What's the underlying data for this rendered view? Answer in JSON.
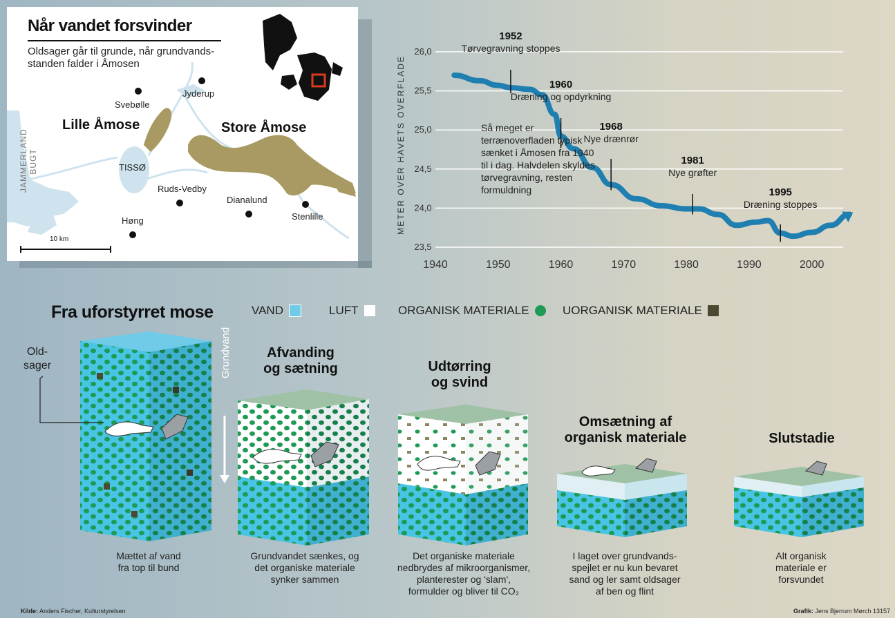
{
  "map": {
    "title": "Når vandet forsvinder",
    "subtitle": "Oldsager går til grunde, når grundvands-standen falder i Åmosen",
    "places": [
      "Jyderup",
      "Svebølle",
      "Ruds-Vedby",
      "Dianalund",
      "Stenlille",
      "Høng"
    ],
    "lake": "TISSØ",
    "region_lille": "Lille Åmose",
    "region_store": "Store Åmose",
    "bay_line1": "JAMMERLAND",
    "bay_line2": "BUGT",
    "scale": "10 km"
  },
  "chart_data": {
    "type": "line",
    "ylabel": "METER OVER HAVETS OVERFLADE",
    "xlabel": "",
    "ylim": [
      23.5,
      26.0
    ],
    "xlim": [
      1940,
      2005
    ],
    "yticks": [
      "26,0",
      "25,5",
      "25,0",
      "24,5",
      "24,0",
      "23,5"
    ],
    "xticks": [
      "1940",
      "1950",
      "1960",
      "1970",
      "1980",
      "1990",
      "2000"
    ],
    "series": [
      {
        "x": [
          1943,
          1947,
          1950,
          1952,
          1955,
          1957,
          1959,
          1960,
          1962,
          1965,
          1968,
          1972,
          1976,
          1980,
          1982,
          1985,
          1988,
          1991,
          1993,
          1995,
          1997,
          2000,
          2003,
          2006
        ],
        "y": [
          25.7,
          25.63,
          25.57,
          25.54,
          25.52,
          25.45,
          25.2,
          24.92,
          24.76,
          24.52,
          24.3,
          24.12,
          24.03,
          23.99,
          23.99,
          23.92,
          23.78,
          23.82,
          23.84,
          23.68,
          23.64,
          23.69,
          23.78,
          23.92
        ]
      }
    ],
    "annotations": [
      {
        "year": "1952",
        "text": "Tørvegravning stoppes",
        "x": 1952,
        "y": 25.54
      },
      {
        "year": "1960",
        "text": "Dræning og opdyrkning",
        "x": 1960,
        "y": 24.84
      },
      {
        "year": "1968",
        "text": "Nye drænrør",
        "x": 1968,
        "y": 24.3
      },
      {
        "year": "1981",
        "text": "Nye grøfter",
        "x": 1981,
        "y": 23.99
      },
      {
        "year": "1995",
        "text": "Dræning stoppes",
        "x": 1995,
        "y": 23.64
      }
    ],
    "note": "Så meget er terrænoverfladen typisk sænket i Åmosen fra 1940 til i dag. Halvdelen skyldes tørvegravning, resten formuldning"
  },
  "section": {
    "title": "Fra uforstyrret mose",
    "legend": [
      {
        "label": "VAND",
        "color": "#6fcbe8"
      },
      {
        "label": "LUFT",
        "color": "#ffffff"
      },
      {
        "label": "ORGANISK MATERIALE",
        "color": "#1e9a55"
      },
      {
        "label": "UORGANISK MATERIALE",
        "color": "#4b4a30"
      }
    ],
    "oldsager": "Old-\nsager",
    "grundvand": "Grundvand"
  },
  "stages": [
    {
      "title": "",
      "caption": "Mættet af vand\nfra top til bund"
    },
    {
      "title": "Afvanding\nog sætning",
      "caption": "Grundvandet sænkes, og\ndet organiske materiale\nsynker sammen"
    },
    {
      "title": "Udtørring\nog svind",
      "caption": "Det organiske materiale\nnedbrydes af mikroorganismer,\nplanterester og 'slam',\nformulder og bliver til CO₂"
    },
    {
      "title": "Omsætning af\norganisk materiale",
      "caption": "I laget over grundvands-\nspejlet er nu kun bevaret\nsand og ler samt oldsager\naf ben og flint"
    },
    {
      "title": "Slutstadie",
      "caption": "Alt organisk\nmateriale er\nforsvundet"
    }
  ],
  "credits": {
    "source_label": "Kilde:",
    "source": "Anders Fischer, Kulturstyrelsen",
    "graphic_label": "Grafik:",
    "graphic": "Jens Bjerrum Mørch 13157"
  }
}
